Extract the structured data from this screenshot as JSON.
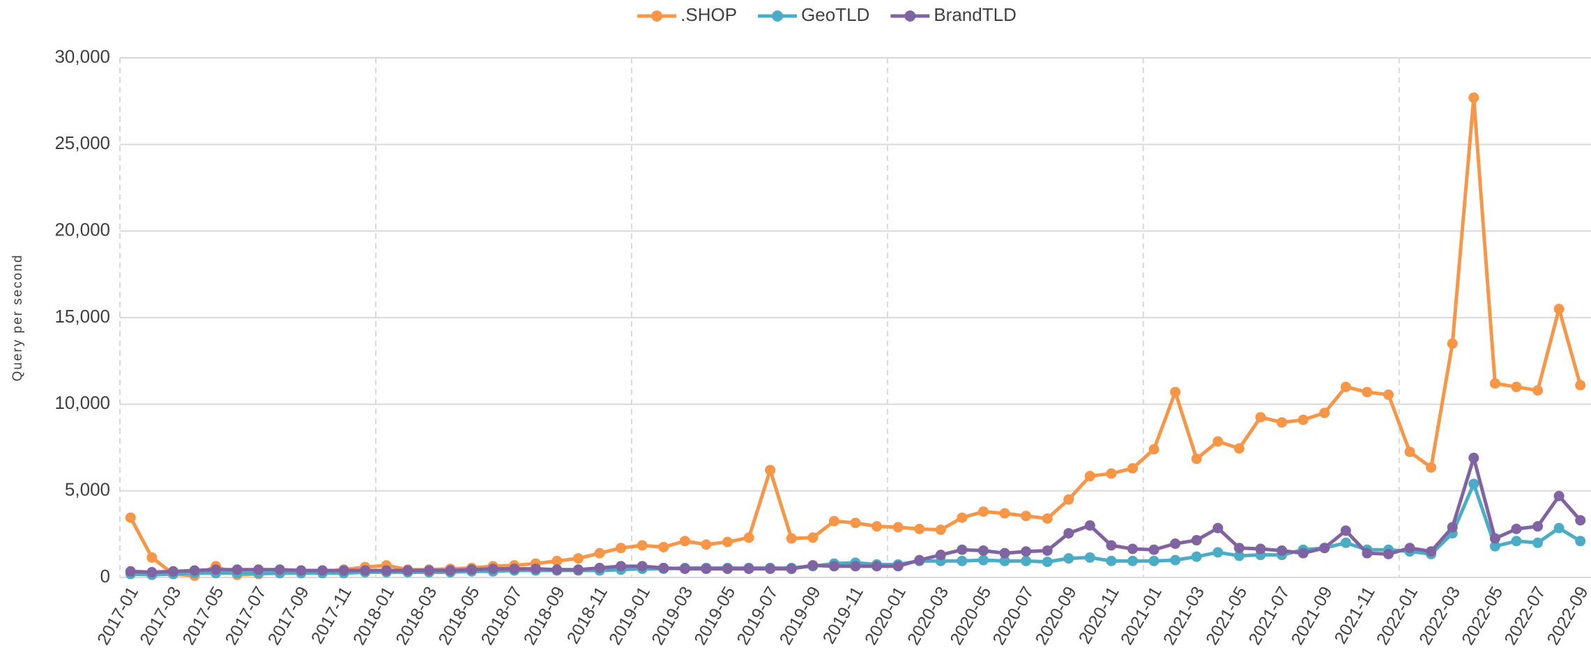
{
  "chart_data": {
    "type": "line",
    "y_label": "Query per second",
    "categories": [
      "2017-01",
      null,
      "2017-03",
      null,
      "2017-05",
      null,
      "2017-07",
      null,
      "2017-09",
      null,
      "2017-11",
      null,
      "2018-01",
      null,
      "2018-03",
      null,
      "2018-05",
      null,
      "2018-07",
      null,
      "2018-09",
      null,
      "2018-11",
      null,
      "2019-01",
      null,
      "2019-03",
      null,
      "2019-05",
      null,
      "2019-07",
      null,
      "2019-09",
      null,
      "2019-11",
      null,
      "2020-01",
      null,
      "2020-03",
      null,
      "2020-05",
      null,
      "2020-07",
      null,
      "2020-09",
      null,
      "2020-11",
      null,
      "2021-01",
      null,
      "2021-03",
      null,
      "2021-05",
      null,
      "2021-07",
      null,
      "2021-09",
      null,
      "2021-11",
      null,
      "2022-01",
      null,
      "2022-03",
      null,
      "2022-05",
      null,
      "2022-07",
      null,
      "2022-09"
    ],
    "series": [
      {
        "name": ".SHOP",
        "color": "#f79646",
        "values": [
          3450,
          1150,
          200,
          100,
          650,
          150,
          200,
          250,
          300,
          350,
          450,
          600,
          700,
          450,
          450,
          500,
          550,
          650,
          700,
          800,
          950,
          1100,
          1400,
          1700,
          1850,
          1750,
          2100,
          1900,
          2050,
          2300,
          6200,
          2250,
          2300,
          3250,
          3150,
          2950,
          2900,
          2800,
          2750,
          3450,
          3800,
          3700,
          3550,
          3400,
          4500,
          5850,
          6000,
          6300,
          7400,
          10700,
          6850,
          7850,
          7450,
          9250,
          8950,
          9100,
          9500,
          11000,
          10700,
          10550,
          7250,
          6350,
          13500,
          27700,
          11200,
          11000,
          10800,
          15500,
          11100
        ]
      },
      {
        "name": "GeoTLD",
        "color": "#4bacc6",
        "values": [
          200,
          150,
          200,
          250,
          250,
          250,
          250,
          250,
          250,
          250,
          250,
          300,
          300,
          300,
          300,
          300,
          350,
          350,
          400,
          400,
          400,
          400,
          400,
          450,
          500,
          500,
          550,
          550,
          550,
          550,
          550,
          550,
          650,
          800,
          850,
          750,
          750,
          950,
          950,
          950,
          1000,
          950,
          950,
          900,
          1100,
          1150,
          950,
          950,
          950,
          1000,
          1200,
          1450,
          1250,
          1300,
          1300,
          1600,
          1700,
          2000,
          1600,
          1600,
          1500,
          1350,
          2550,
          5400,
          1800,
          2100,
          2000,
          2850,
          2100
        ]
      },
      {
        "name": "BrandTLD",
        "color": "#8064a2",
        "values": [
          350,
          300,
          350,
          400,
          450,
          450,
          450,
          450,
          400,
          400,
          400,
          400,
          400,
          400,
          400,
          400,
          450,
          500,
          500,
          500,
          450,
          450,
          550,
          650,
          650,
          550,
          500,
          500,
          500,
          500,
          500,
          500,
          700,
          650,
          650,
          650,
          650,
          1000,
          1300,
          1600,
          1550,
          1400,
          1500,
          1550,
          2550,
          3000,
          1850,
          1650,
          1600,
          1950,
          2150,
          2850,
          1700,
          1650,
          1550,
          1400,
          1700,
          2700,
          1400,
          1350,
          1700,
          1500,
          2900,
          6900,
          2250,
          2800,
          2950,
          4700,
          3300
        ]
      }
    ],
    "ylim": [
      0,
      30000
    ],
    "yticks": [
      0,
      {
        "value": 5000,
        "label": "5,000"
      },
      {
        "value": 10000,
        "label": "10,000"
      },
      {
        "value": 15000,
        "label": "15,000"
      },
      {
        "value": 20000,
        "label": "20,000"
      },
      {
        "value": 25000,
        "label": "25,000"
      },
      {
        "value": 30000,
        "label": "30,000"
      }
    ],
    "grid": true,
    "legend": "top"
  }
}
